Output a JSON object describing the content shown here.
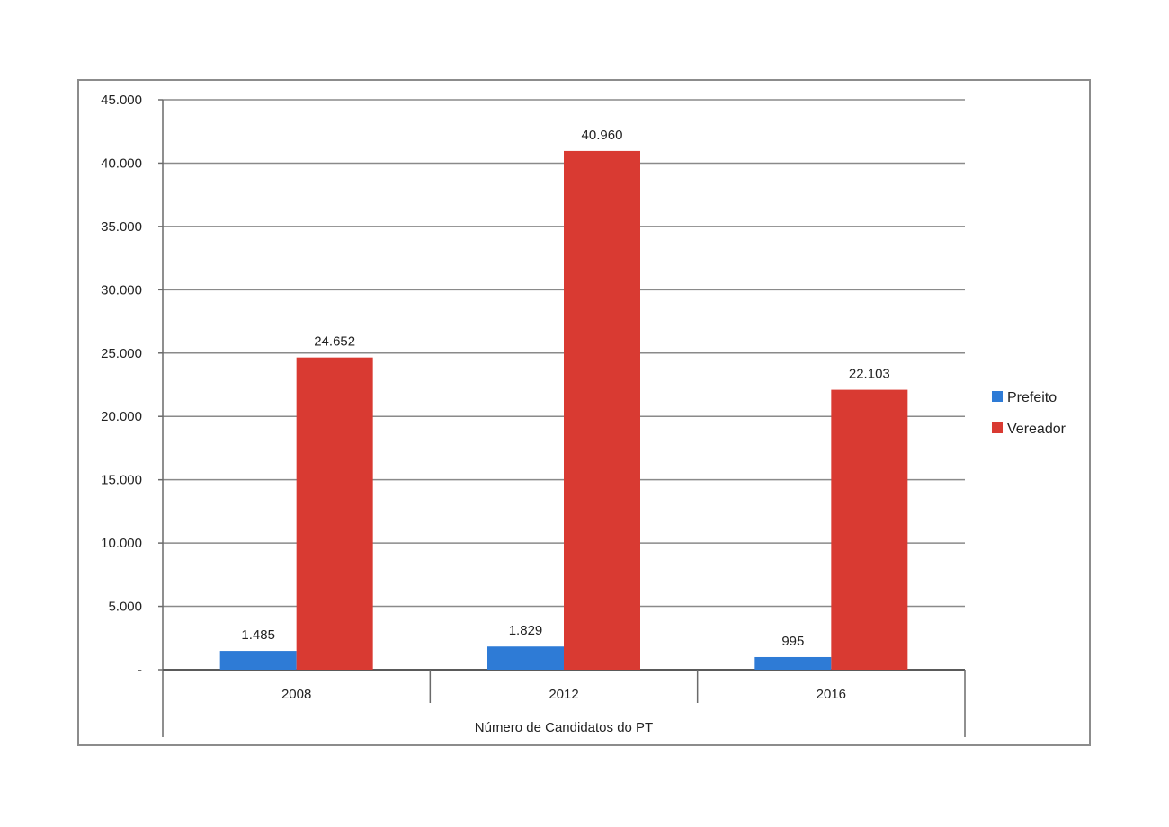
{
  "chart_data": {
    "type": "bar",
    "title": "",
    "group_label": "Número de Candidatos do PT",
    "categories": [
      "2008",
      "2012",
      "2016"
    ],
    "series": [
      {
        "name": "Prefeito",
        "color": "#2e7bd6",
        "values": [
          1485,
          1829,
          995
        ],
        "labels": [
          "1.485",
          "1.829",
          "995"
        ]
      },
      {
        "name": "Vereador",
        "color": "#d93a32",
        "values": [
          24652,
          40960,
          22103
        ],
        "labels": [
          "24.652",
          "40.960",
          "22.103"
        ]
      }
    ],
    "ylim": [
      0,
      45000
    ],
    "y_ticks": [
      {
        "value": 0,
        "label": "-"
      },
      {
        "value": 5000,
        "label": "5.000"
      },
      {
        "value": 10000,
        "label": "10.000"
      },
      {
        "value": 15000,
        "label": "15.000"
      },
      {
        "value": 20000,
        "label": "20.000"
      },
      {
        "value": 25000,
        "label": "25.000"
      },
      {
        "value": 30000,
        "label": "30.000"
      },
      {
        "value": 35000,
        "label": "35.000"
      },
      {
        "value": 40000,
        "label": "40.000"
      },
      {
        "value": 45000,
        "label": "45.000"
      }
    ],
    "grid": true,
    "legend_position": "right"
  }
}
